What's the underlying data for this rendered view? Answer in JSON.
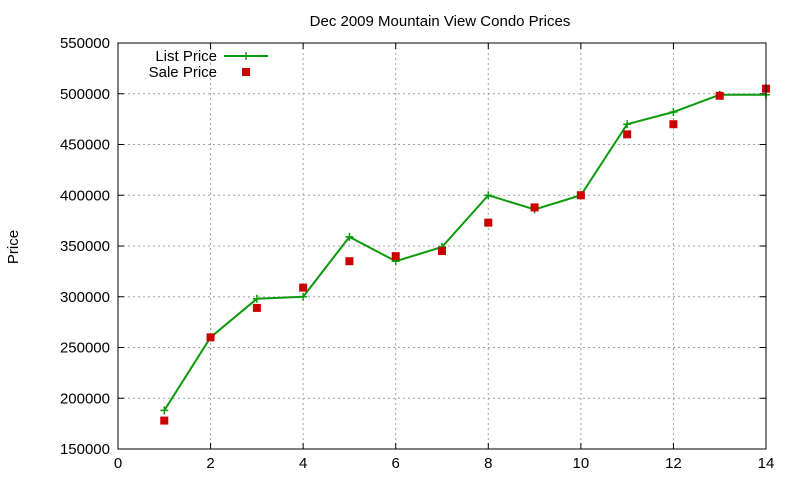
{
  "chart_data": {
    "type": "line",
    "title": "Dec 2009 Mountain View Condo Prices",
    "xlabel": "",
    "ylabel": "Price",
    "xlim": [
      0,
      14
    ],
    "ylim": [
      150000,
      550000
    ],
    "xticks": [
      0,
      2,
      4,
      6,
      8,
      10,
      12,
      14
    ],
    "yticks": [
      150000,
      200000,
      250000,
      300000,
      350000,
      400000,
      450000,
      500000,
      550000
    ],
    "grid": true,
    "legend_position": "top-left",
    "series": [
      {
        "name": "List Price",
        "style": "line-with-plus-markers",
        "color": "#0a9a0a",
        "x": [
          1,
          2,
          3,
          4,
          5,
          6,
          7,
          8,
          9,
          10,
          11,
          12,
          13,
          14
        ],
        "values": [
          188000,
          260000,
          298000,
          300000,
          359000,
          335000,
          349000,
          400000,
          386000,
          400000,
          470000,
          482000,
          499000,
          499000
        ]
      },
      {
        "name": "Sale Price",
        "style": "square-markers",
        "color": "#cc0000",
        "x": [
          1,
          2,
          3,
          4,
          5,
          6,
          7,
          8,
          9,
          10,
          11,
          12,
          13,
          14
        ],
        "values": [
          178000,
          260000,
          289000,
          309000,
          335000,
          340000,
          345000,
          373000,
          388000,
          400000,
          460000,
          470000,
          498000,
          505000
        ]
      }
    ]
  }
}
